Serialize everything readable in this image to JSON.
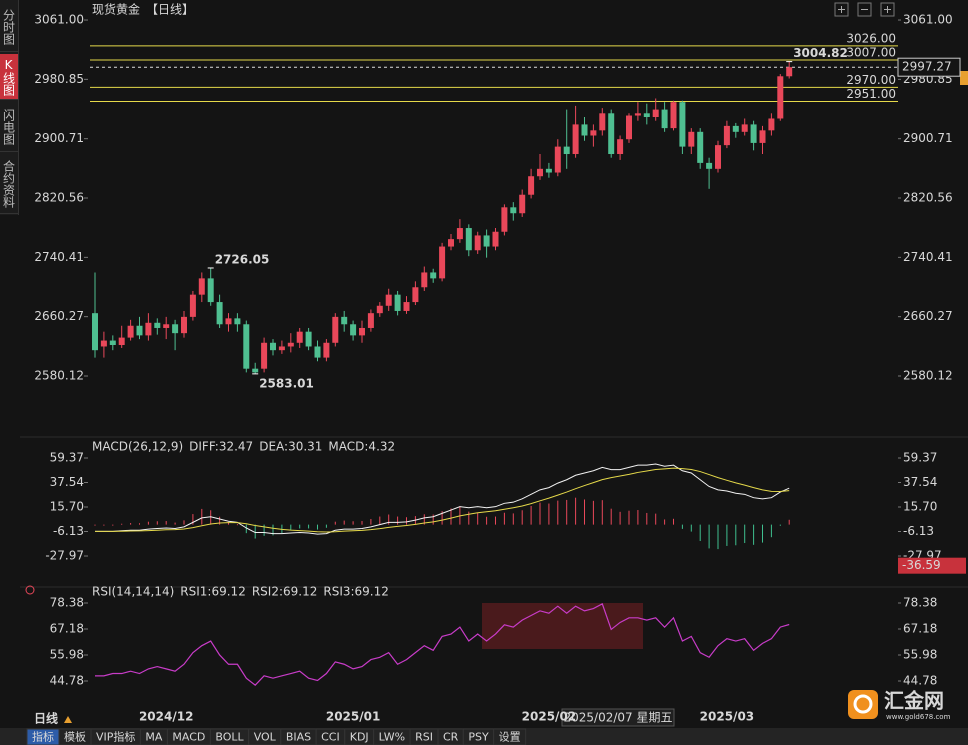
{
  "chart_data": [
    {
      "type": "candlestick",
      "title": "现货黄金",
      "subtitle": "【日线】",
      "categories": [
        null,
        null,
        null,
        null,
        null,
        null,
        null,
        null,
        "2024/12",
        null,
        null,
        null,
        null,
        null,
        null,
        null,
        null,
        null,
        null,
        null,
        null,
        null,
        null,
        null,
        null,
        null,
        null,
        null,
        null,
        "2025/01",
        null,
        null,
        null,
        null,
        null,
        null,
        null,
        null,
        null,
        null,
        null,
        null,
        null,
        null,
        null,
        null,
        null,
        null,
        null,
        null,
        null,
        "2025/02",
        null,
        null,
        null,
        null,
        null,
        null,
        null,
        null,
        null,
        null,
        null,
        null,
        null,
        null,
        null,
        null,
        null,
        null,
        null,
        "2025/03",
        null,
        null,
        null,
        null,
        null,
        null,
        null
      ],
      "open": [
        2665,
        2620,
        2628,
        2622,
        2632,
        2648,
        2635,
        2652,
        2645,
        2650,
        2638,
        2660,
        2690,
        2712,
        2680,
        2650,
        2658,
        2650,
        2590,
        2590,
        2625,
        2615,
        2620,
        2625,
        2640,
        2620,
        2605,
        2625,
        2660,
        2650,
        2635,
        2645,
        2665,
        2675,
        2690,
        2668,
        2680,
        2700,
        2720,
        2712,
        2755,
        2765,
        2780,
        2750,
        2770,
        2755,
        2775,
        2808,
        2800,
        2825,
        2850,
        2860,
        2855,
        2890,
        2880,
        2920,
        2905,
        2912,
        2935,
        2880,
        2900,
        2932,
        2935,
        2930,
        2940,
        2915,
        2950,
        2890,
        2910,
        2868,
        2860,
        2892,
        2918,
        2910,
        2920,
        2895,
        2912,
        2928,
        2985
      ],
      "high": [
        2720,
        2640,
        2635,
        2648,
        2656,
        2660,
        2665,
        2658,
        2660,
        2656,
        2668,
        2695,
        2720,
        2726.05,
        2690,
        2665,
        2665,
        2655,
        2598,
        2632,
        2630,
        2628,
        2638,
        2645,
        2645,
        2628,
        2630,
        2665,
        2668,
        2655,
        2655,
        2670,
        2680,
        2698,
        2695,
        2688,
        2708,
        2728,
        2725,
        2760,
        2772,
        2792,
        2785,
        2775,
        2778,
        2780,
        2812,
        2815,
        2832,
        2860,
        2880,
        2868,
        2900,
        2940,
        2945,
        2930,
        2920,
        2942,
        2940,
        2905,
        2935,
        2950,
        2948,
        2955,
        2950,
        2952,
        2952,
        2915,
        2915,
        2875,
        2898,
        2925,
        2922,
        2928,
        2925,
        2918,
        2935,
        2988,
        3004.82
      ],
      "low": [
        2605,
        2605,
        2615,
        2618,
        2628,
        2630,
        2628,
        2636,
        2630,
        2615,
        2632,
        2655,
        2680,
        2675,
        2645,
        2640,
        2640,
        2585,
        2583.01,
        2585,
        2608,
        2610,
        2612,
        2618,
        2615,
        2600,
        2600,
        2620,
        2640,
        2628,
        2625,
        2640,
        2660,
        2668,
        2662,
        2664,
        2676,
        2695,
        2706,
        2708,
        2750,
        2760,
        2742,
        2745,
        2740,
        2750,
        2770,
        2790,
        2795,
        2820,
        2845,
        2848,
        2850,
        2860,
        2875,
        2898,
        2890,
        2905,
        2875,
        2872,
        2895,
        2925,
        2920,
        2925,
        2910,
        2912,
        2880,
        2880,
        2860,
        2833,
        2855,
        2888,
        2902,
        2905,
        2885,
        2880,
        2905,
        2925,
        2982
      ],
      "close": [
        2615,
        2628,
        2622,
        2632,
        2648,
        2635,
        2652,
        2645,
        2650,
        2638,
        2660,
        2690,
        2712,
        2680,
        2650,
        2658,
        2650,
        2590,
        2585,
        2625,
        2615,
        2620,
        2625,
        2640,
        2620,
        2605,
        2625,
        2660,
        2650,
        2635,
        2645,
        2665,
        2675,
        2690,
        2668,
        2680,
        2700,
        2720,
        2712,
        2755,
        2765,
        2780,
        2750,
        2770,
        2755,
        2775,
        2808,
        2800,
        2825,
        2850,
        2860,
        2855,
        2890,
        2880,
        2920,
        2905,
        2912,
        2935,
        2880,
        2900,
        2932,
        2935,
        2930,
        2940,
        2915,
        2950,
        2890,
        2910,
        2868,
        2860,
        2892,
        2918,
        2910,
        2920,
        2895,
        2912,
        2928,
        2985,
        2997.27
      ],
      "up_color": "#e9485a",
      "down_color": "#4fbf91",
      "ylim": [
        2547.7,
        3081.3
      ],
      "yticks": [
        {
          "value": 3061,
          "label": "3061.00"
        },
        2980.85,
        2900.71,
        2820.56,
        2740.41,
        2660.27,
        2580.12
      ],
      "hlines": [
        {
          "value": 3026,
          "label": "3026.00"
        },
        {
          "value": 3007,
          "label": "3007.00"
        },
        {
          "value": 2970,
          "label": "2970.00"
        },
        {
          "value": 2951,
          "label": "2951.00"
        }
      ],
      "hline_color": "#e5d94a"
    },
    {
      "type": "macd",
      "title": "MACD(26,12,9)",
      "series": [
        {
          "name": "DIFF:32.47",
          "color": "#f2f2f2",
          "values": [
            -6,
            -6,
            -6,
            -5.5,
            -5,
            -5,
            -4,
            -3.5,
            -3,
            -3.5,
            -2,
            2,
            6,
            7,
            5,
            3,
            2,
            -3,
            -7,
            -7,
            -8,
            -8,
            -7.5,
            -7,
            -7.5,
            -8.5,
            -8,
            -5,
            -4,
            -4,
            -3.5,
            -2,
            0,
            2,
            2,
            2.5,
            4,
            6,
            7,
            10,
            13,
            16,
            15,
            16,
            15,
            16,
            19,
            20,
            23,
            27,
            31,
            33,
            37,
            40,
            44,
            46,
            48,
            51,
            49,
            49,
            51,
            53,
            53,
            54,
            52,
            53,
            48,
            46,
            40,
            34,
            31,
            30,
            28,
            27,
            24,
            23,
            24,
            29,
            32.47
          ]
        },
        {
          "name": "DEA:30.31",
          "color": "#e5d94a",
          "values": [
            -6,
            -6,
            -6,
            -5.9,
            -5.7,
            -5.6,
            -5.3,
            -5,
            -4.6,
            -4.4,
            -3.9,
            -2.7,
            -1,
            0.6,
            1.5,
            1.8,
            1.8,
            0.8,
            -0.8,
            -2,
            -3.2,
            -4.2,
            -4.9,
            -5.3,
            -5.8,
            -6.3,
            -6.6,
            -6.3,
            -5.8,
            -5.5,
            -5.1,
            -4.5,
            -3.6,
            -2.5,
            -1.6,
            -0.8,
            0.2,
            1.4,
            2.5,
            4,
            5.8,
            7.8,
            9.2,
            10.6,
            11.5,
            12.4,
            13.7,
            15,
            16.6,
            18.7,
            21.2,
            23.6,
            26.3,
            29,
            32,
            34.8,
            37.4,
            40.1,
            41.9,
            43.3,
            44.8,
            46.5,
            47.8,
            49.1,
            49.7,
            50.4,
            49.9,
            49.1,
            47.3,
            44.6,
            41.9,
            39.5,
            37.2,
            35.2,
            33,
            31,
            29.6,
            29.5,
            30.31
          ]
        },
        {
          "name": "MACD:4.32",
          "color": "#d450d4",
          "up_color": "#e9485a",
          "down_color": "#3fbf8f",
          "bars": true,
          "values": [
            0,
            0,
            0,
            0.8,
            1.4,
            1.2,
            2.6,
            3,
            3.2,
            1.8,
            3.8,
            9.4,
            14,
            12.8,
            7,
            2.4,
            0.4,
            -7.6,
            -12.4,
            -10,
            -9.6,
            -7.6,
            -5.2,
            -3.4,
            -3.4,
            -4.4,
            -2.8,
            2.6,
            3.6,
            3,
            3.2,
            5,
            7.2,
            9,
            7.2,
            6.6,
            7.6,
            9.2,
            9,
            12,
            14.4,
            16.4,
            11.6,
            10.8,
            7,
            7.2,
            10.6,
            10,
            12.8,
            16.6,
            19.6,
            18.8,
            21.4,
            22,
            24,
            22.4,
            21.2,
            21.8,
            14.2,
            11.4,
            12.4,
            13,
            10.4,
            9.8,
            4.6,
            5.2,
            -3.8,
            -6.2,
            -14.6,
            -21.2,
            -21.8,
            -19,
            -18.4,
            -16.4,
            -18,
            -16,
            -11.2,
            -1,
            4.32
          ]
        }
      ],
      "ylim": [
        -53.8,
        66.5
      ],
      "yticks": [
        59.37,
        37.54,
        {
          "value": 15.7,
          "label": "15.70"
        },
        -6.13,
        -27.97
      ],
      "cursor_value": -36.59
    },
    {
      "type": "rsi",
      "title": "RSI(14,14,14)",
      "series": [
        {
          "name": "RSI1:69.12",
          "color": "#f2f2f2"
        },
        {
          "name": "RSI2:69.12",
          "color": "#e5d94a"
        },
        {
          "name": "RSI3:69.12",
          "color": "#c83cc8",
          "values": [
            47,
            47,
            48,
            48,
            49,
            48,
            50,
            51,
            50,
            49,
            52,
            57,
            60,
            62,
            56,
            52,
            52,
            46,
            43,
            47,
            46,
            47,
            48,
            49,
            46,
            45,
            48,
            53,
            52,
            50,
            51,
            54,
            55,
            57,
            52,
            54,
            57,
            60,
            58,
            64,
            65,
            68,
            62,
            65,
            62,
            65,
            69,
            68,
            71,
            73,
            75,
            74,
            77,
            74,
            77,
            75,
            76,
            78,
            67,
            70,
            72,
            72,
            71,
            72,
            68,
            72,
            62,
            64,
            57,
            55,
            60,
            63,
            62,
            63,
            58,
            61,
            63,
            68,
            69.12
          ]
        }
      ],
      "ylim": [
        34.44,
        80.97
      ],
      "yticks": [
        78.38,
        67.18,
        55.98,
        44.78
      ]
    }
  ],
  "ui": {
    "sidebar": [
      "分时图",
      "K线图",
      "闪电图",
      "合约资料"
    ],
    "period": "日线",
    "toolbar": [
      "指标",
      "模板",
      "VIP指标",
      "MA",
      "MACD",
      "BOLL",
      "VOL",
      "BIAS",
      "CCI",
      "KDJ",
      "LW%",
      "RSI",
      "CR",
      "PSY",
      "设置"
    ],
    "tooltip": "2025/02/07 星期五",
    "logo_name": "汇金网",
    "logo_url": "www.gold678.com"
  }
}
